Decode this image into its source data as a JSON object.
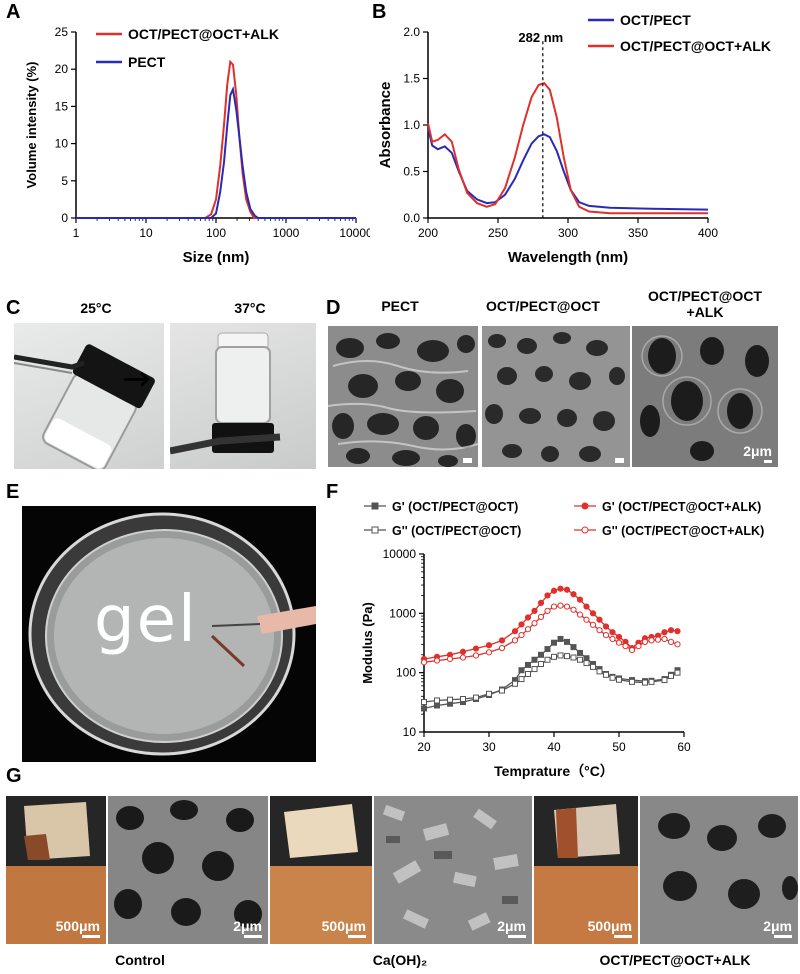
{
  "panels": {
    "a": "A",
    "b": "B",
    "c": "C",
    "d": "D",
    "e": "E",
    "f": "F",
    "g": "G"
  },
  "chart_data": [
    {
      "id": "A",
      "type": "line",
      "xscale": "log",
      "xlabel": "Size (nm)",
      "ylabel": "Volume intensity (%)",
      "xlim": [
        1,
        10000
      ],
      "ylim": [
        0,
        25
      ],
      "xticks": [
        "1",
        "10",
        "100",
        "1000",
        "10000"
      ],
      "yticks": [
        "0",
        "5",
        "10",
        "15",
        "20",
        "25"
      ],
      "legend_position": "top-left",
      "series": [
        {
          "name": "OCT/PECT@OCT+ALK",
          "color": "#e0302c",
          "points": [
            [
              1,
              0
            ],
            [
              70,
              0
            ],
            [
              85,
              0.5
            ],
            [
              100,
              2.5
            ],
            [
              115,
              7
            ],
            [
              130,
              12.5
            ],
            [
              145,
              18
            ],
            [
              160,
              21
            ],
            [
              175,
              20.6
            ],
            [
              195,
              16.5
            ],
            [
              215,
              11
            ],
            [
              240,
              6
            ],
            [
              270,
              2.5
            ],
            [
              310,
              0.8
            ],
            [
              350,
              0
            ],
            [
              10000,
              0
            ]
          ]
        },
        {
          "name": "PECT",
          "color": "#2a2ab8",
          "points": [
            [
              1,
              0
            ],
            [
              85,
              0
            ],
            [
              100,
              0.6
            ],
            [
              115,
              3.5
            ],
            [
              130,
              7.5
            ],
            [
              145,
              12.5
            ],
            [
              160,
              16.5
            ],
            [
              175,
              17.3
            ],
            [
              195,
              14.5
            ],
            [
              215,
              11
            ],
            [
              240,
              7
            ],
            [
              270,
              3.5
            ],
            [
              310,
              1.2
            ],
            [
              360,
              0.3
            ],
            [
              400,
              0
            ],
            [
              10000,
              0
            ]
          ]
        }
      ]
    },
    {
      "id": "B",
      "type": "line",
      "xlabel": "Wavelength (nm)",
      "ylabel": "Absorbance",
      "xlim": [
        200,
        400
      ],
      "ylim": [
        0,
        2.0
      ],
      "xticks": [
        "200",
        "250",
        "300",
        "350",
        "400"
      ],
      "yticks": [
        "0.0",
        "0.5",
        "1.0",
        "1.5",
        "2.0"
      ],
      "annotation": {
        "text": "282 nm",
        "x": 282
      },
      "legend_position": "top-right",
      "series": [
        {
          "name": "OCT/PECT",
          "color": "#2a2ab8",
          "points": [
            [
              200,
              0.97
            ],
            [
              203,
              0.78
            ],
            [
              207,
              0.74
            ],
            [
              212,
              0.77
            ],
            [
              217,
              0.7
            ],
            [
              222,
              0.5
            ],
            [
              228,
              0.29
            ],
            [
              235,
              0.2
            ],
            [
              242,
              0.16
            ],
            [
              248,
              0.17
            ],
            [
              255,
              0.25
            ],
            [
              262,
              0.42
            ],
            [
              268,
              0.62
            ],
            [
              274,
              0.8
            ],
            [
              279,
              0.88
            ],
            [
              283,
              0.9
            ],
            [
              287,
              0.87
            ],
            [
              292,
              0.72
            ],
            [
              297,
              0.5
            ],
            [
              302,
              0.3
            ],
            [
              308,
              0.17
            ],
            [
              315,
              0.13
            ],
            [
              330,
              0.11
            ],
            [
              360,
              0.1
            ],
            [
              400,
              0.09
            ]
          ]
        },
        {
          "name": "OCT/PECT@OCT+ALK",
          "color": "#e0302c",
          "points": [
            [
              200,
              1.02
            ],
            [
              203,
              0.82
            ],
            [
              207,
              0.84
            ],
            [
              212,
              0.9
            ],
            [
              217,
              0.82
            ],
            [
              222,
              0.52
            ],
            [
              228,
              0.27
            ],
            [
              235,
              0.16
            ],
            [
              242,
              0.12
            ],
            [
              248,
              0.15
            ],
            [
              255,
              0.32
            ],
            [
              262,
              0.65
            ],
            [
              268,
              1.0
            ],
            [
              274,
              1.3
            ],
            [
              279,
              1.43
            ],
            [
              283,
              1.45
            ],
            [
              287,
              1.38
            ],
            [
              292,
              1.08
            ],
            [
              297,
              0.65
            ],
            [
              302,
              0.3
            ],
            [
              308,
              0.12
            ],
            [
              315,
              0.07
            ],
            [
              330,
              0.05
            ],
            [
              360,
              0.05
            ],
            [
              400,
              0.05
            ]
          ]
        }
      ]
    },
    {
      "id": "F",
      "type": "line",
      "yscale": "log",
      "xlabel": "Temprature（°C）",
      "ylabel": "Modulus (Pa)",
      "xlim": [
        20,
        60
      ],
      "ylim": [
        10,
        10000
      ],
      "xticks": [
        "20",
        "30",
        "40",
        "50",
        "60"
      ],
      "yticks": [
        "10",
        "100",
        "1000",
        "10000"
      ],
      "legend_position": "top",
      "series": [
        {
          "name": "G' (OCT/PECT@OCT)",
          "color": "#555555",
          "marker": "filled-square",
          "points": [
            [
              20,
              25
            ],
            [
              22,
              28
            ],
            [
              24,
              30
            ],
            [
              26,
              32
            ],
            [
              28,
              36
            ],
            [
              30,
              42
            ],
            [
              32,
              52
            ],
            [
              34,
              75
            ],
            [
              35,
              110
            ],
            [
              36,
              135
            ],
            [
              37,
              165
            ],
            [
              38,
              200
            ],
            [
              39,
              250
            ],
            [
              40,
              320
            ],
            [
              41,
              370
            ],
            [
              42,
              330
            ],
            [
              43,
              270
            ],
            [
              44,
              215
            ],
            [
              45,
              175
            ],
            [
              46,
              140
            ],
            [
              47,
              115
            ],
            [
              48,
              95
            ],
            [
              49,
              85
            ],
            [
              50,
              80
            ],
            [
              52,
              75
            ],
            [
              54,
              72
            ],
            [
              55,
              73
            ],
            [
              57,
              78
            ],
            [
              58,
              92
            ],
            [
              59,
              110
            ]
          ]
        },
        {
          "name": "G'' (OCT/PECT@OCT)",
          "color": "#555555",
          "marker": "open-square",
          "points": [
            [
              20,
              32
            ],
            [
              22,
              34
            ],
            [
              24,
              35
            ],
            [
              26,
              36
            ],
            [
              28,
              38
            ],
            [
              30,
              44
            ],
            [
              32,
              50
            ],
            [
              34,
              65
            ],
            [
              35,
              78
            ],
            [
              36,
              95
            ],
            [
              37,
              115
            ],
            [
              38,
              140
            ],
            [
              39,
              165
            ],
            [
              40,
              185
            ],
            [
              41,
              195
            ],
            [
              42,
              190
            ],
            [
              43,
              180
            ],
            [
              44,
              165
            ],
            [
              45,
              145
            ],
            [
              46,
              125
            ],
            [
              47,
              105
            ],
            [
              48,
              92
            ],
            [
              49,
              82
            ],
            [
              50,
              76
            ],
            [
              52,
              70
            ],
            [
              54,
              68
            ],
            [
              55,
              70
            ],
            [
              57,
              75
            ],
            [
              58,
              88
            ],
            [
              59,
              100
            ]
          ]
        },
        {
          "name": "G' (OCT/PECT@OCT+ALK)",
          "color": "#e0302c",
          "marker": "filled-circle",
          "points": [
            [
              20,
              170
            ],
            [
              22,
              185
            ],
            [
              24,
              200
            ],
            [
              26,
              225
            ],
            [
              28,
              255
            ],
            [
              30,
              290
            ],
            [
              32,
              350
            ],
            [
              34,
              500
            ],
            [
              35,
              650
            ],
            [
              36,
              850
            ],
            [
              37,
              1100
            ],
            [
              38,
              1500
            ],
            [
              39,
              2000
            ],
            [
              40,
              2400
            ],
            [
              41,
              2600
            ],
            [
              42,
              2500
            ],
            [
              43,
              2100
            ],
            [
              44,
              1700
            ],
            [
              45,
              1300
            ],
            [
              46,
              1000
            ],
            [
              47,
              780
            ],
            [
              48,
              600
            ],
            [
              49,
              480
            ],
            [
              50,
              400
            ],
            [
              51,
              330
            ],
            [
              52,
              260
            ],
            [
              53,
              320
            ],
            [
              54,
              380
            ],
            [
              55,
              400
            ],
            [
              56,
              420
            ],
            [
              57,
              480
            ],
            [
              58,
              520
            ],
            [
              59,
              500
            ]
          ]
        },
        {
          "name": "G'' (OCT/PECT@OCT+ALK)",
          "color": "#e0302c",
          "marker": "open-circle",
          "points": [
            [
              20,
              150
            ],
            [
              22,
              160
            ],
            [
              24,
              170
            ],
            [
              26,
              180
            ],
            [
              28,
              195
            ],
            [
              30,
              220
            ],
            [
              32,
              260
            ],
            [
              34,
              350
            ],
            [
              35,
              430
            ],
            [
              36,
              540
            ],
            [
              37,
              680
            ],
            [
              38,
              870
            ],
            [
              39,
              1100
            ],
            [
              40,
              1300
            ],
            [
              41,
              1350
            ],
            [
              42,
              1300
            ],
            [
              43,
              1150
            ],
            [
              44,
              950
            ],
            [
              45,
              780
            ],
            [
              46,
              640
            ],
            [
              47,
              520
            ],
            [
              48,
              430
            ],
            [
              49,
              370
            ],
            [
              50,
              320
            ],
            [
              51,
              280
            ],
            [
              52,
              240
            ],
            [
              53,
              280
            ],
            [
              54,
              330
            ],
            [
              55,
              350
            ],
            [
              56,
              360
            ],
            [
              57,
              370
            ],
            [
              58,
              330
            ],
            [
              59,
              300
            ]
          ]
        }
      ]
    }
  ],
  "panel_c": {
    "label_25": "25°C",
    "label_37": "37°C",
    "arrow": "→"
  },
  "panel_d": {
    "titles": [
      "PECT",
      "OCT/PECT@OCT",
      "OCT/PECT@OCT\n+ALK"
    ],
    "scale": "2μm"
  },
  "panel_e": {
    "gel_text": "gel"
  },
  "panel_g": {
    "groups": [
      {
        "label": "Control",
        "scale_photo": "500μm",
        "scale_sem": "2μm"
      },
      {
        "label": "Ca(OH)₂",
        "scale_photo": "500μm",
        "scale_sem": "2μm"
      },
      {
        "label": "OCT/PECT@OCT+ALK",
        "scale_photo": "500μm",
        "scale_sem": "2μm"
      }
    ]
  },
  "colors": {
    "red": "#e0302c",
    "blue": "#2a2ab8",
    "grey": "#555555"
  }
}
